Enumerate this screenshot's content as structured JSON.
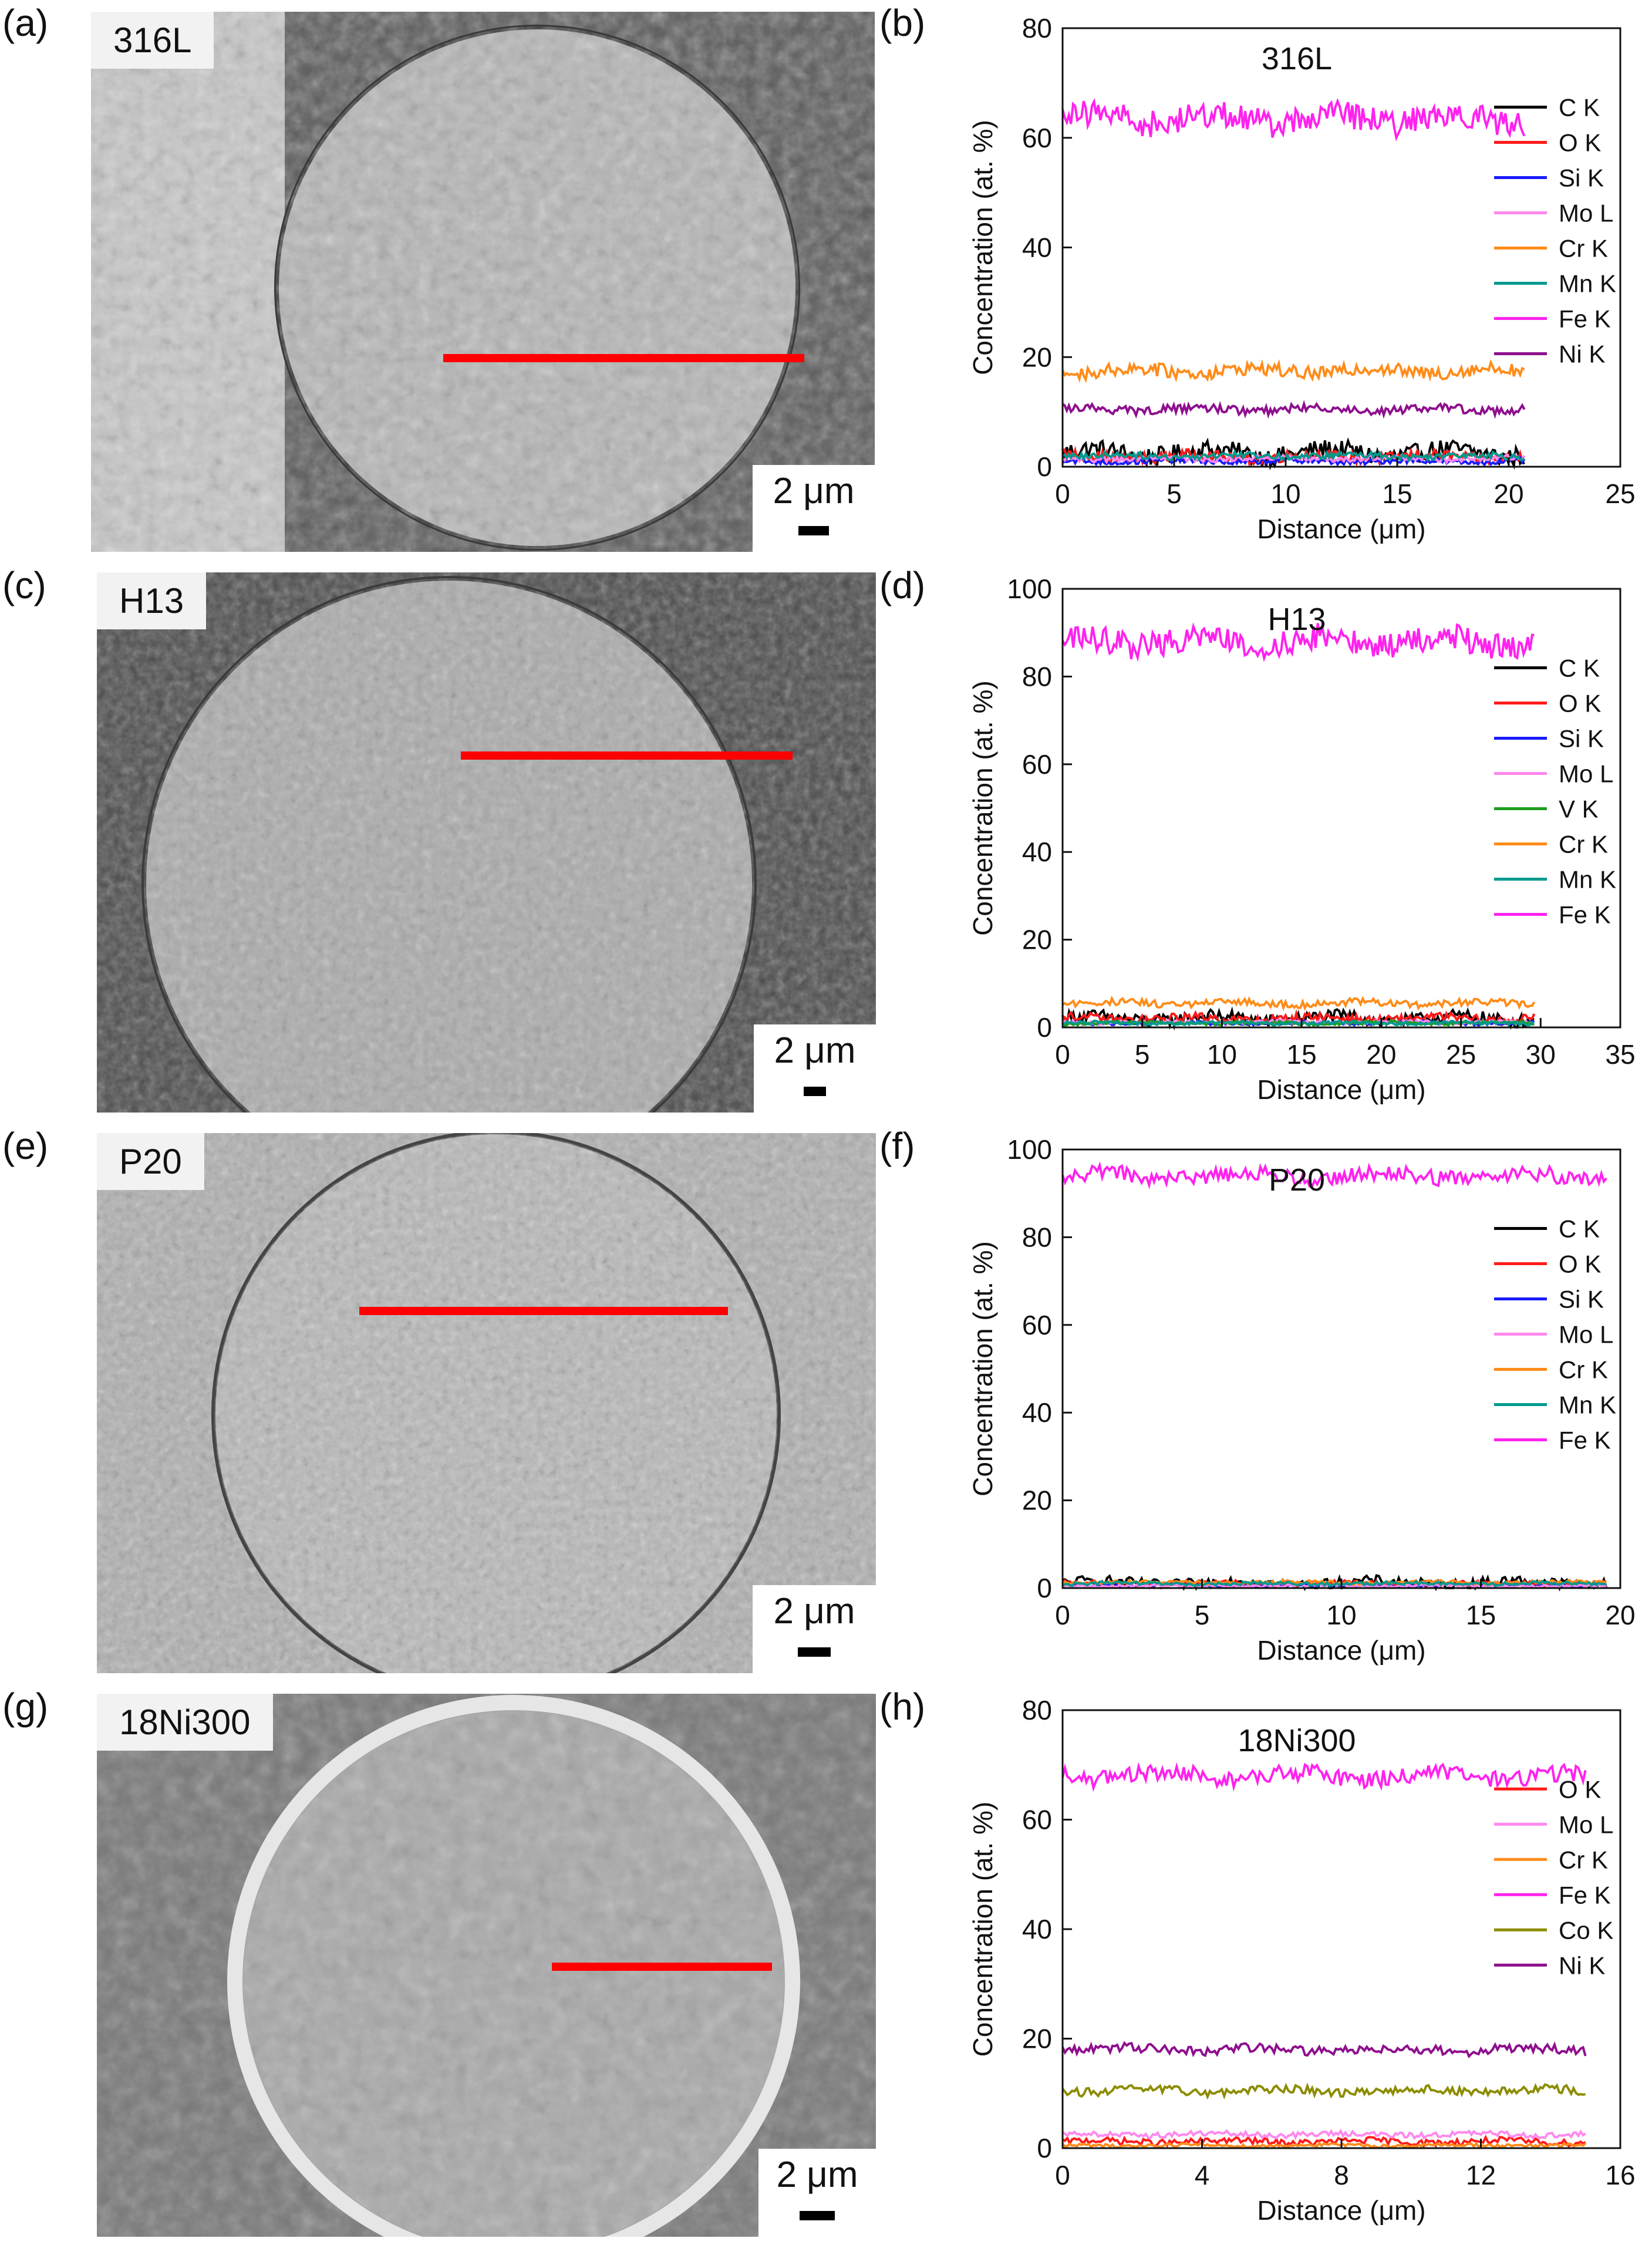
{
  "panels": {
    "a": "(a)",
    "b": "(b)",
    "c": "(c)",
    "d": "(d)",
    "e": "(e)",
    "f": "(f)",
    "g": "(g)",
    "h": "(h)"
  },
  "images": [
    {
      "sample": "316L",
      "scale_bar": "2 μm"
    },
    {
      "sample": "H13",
      "scale_bar": "2 μm"
    },
    {
      "sample": "P20",
      "scale_bar": "2 μm"
    },
    {
      "sample": "18Ni300",
      "scale_bar": "2 μm"
    }
  ],
  "colors": {
    "C K": "#000000",
    "O K": "#ff1a1a",
    "Si K": "#1a1aff",
    "Mo L": "#ff88ee",
    "V K": "#1e9e1e",
    "Cr K": "#ff8c1a",
    "Mn K": "#009a8e",
    "Fe K": "#ff22ee",
    "Co K": "#8c8c00",
    "Ni K": "#8e0f8e",
    "red_line": "#ff0000"
  },
  "chart_data": [
    {
      "type": "line",
      "title": "316L",
      "xlabel": "Distance (μm)",
      "ylabel": "Concentration (at. %)",
      "xlim": [
        0,
        25
      ],
      "ylim": [
        0,
        80
      ],
      "xticks": [
        "0",
        "5",
        "10",
        "15",
        "20",
        "25"
      ],
      "yticks": [
        "0",
        "20",
        "40",
        "60",
        "80"
      ],
      "x_end": 20.7,
      "legend_position": "right",
      "series": [
        {
          "name": "C  K",
          "mean": 2.5,
          "noise": 1.8
        },
        {
          "name": "O  K",
          "mean": 1.8,
          "noise": 1.0
        },
        {
          "name": "Si K",
          "mean": 1.0,
          "noise": 0.5
        },
        {
          "name": "Mo L",
          "mean": 1.5,
          "noise": 0.5
        },
        {
          "name": "Cr K",
          "mean": 17.5,
          "noise": 1.2
        },
        {
          "name": "Mn K",
          "mean": 2.0,
          "noise": 0.6
        },
        {
          "name": "Fe K",
          "mean": 63.5,
          "noise": 2.5
        },
        {
          "name": "Ni K",
          "mean": 10.5,
          "noise": 0.8
        }
      ]
    },
    {
      "type": "line",
      "title": "H13",
      "xlabel": "Distance (μm)",
      "ylabel": "Concentration (at. %)",
      "xlim": [
        0,
        35
      ],
      "ylim": [
        0,
        100
      ],
      "xticks": [
        "0",
        "5",
        "10",
        "15",
        "20",
        "25",
        "30",
        "35"
      ],
      "yticks": [
        "0",
        "20",
        "40",
        "60",
        "80",
        "100"
      ],
      "x_end": 29.6,
      "legend_position": "right",
      "series": [
        {
          "name": "C  K",
          "mean": 2.0,
          "noise": 1.5
        },
        {
          "name": "O  K",
          "mean": 2.0,
          "noise": 1.0
        },
        {
          "name": "Si K",
          "mean": 1.0,
          "noise": 0.4
        },
        {
          "name": "Mo L",
          "mean": 1.2,
          "noise": 0.4
        },
        {
          "name": "V  K",
          "mean": 1.0,
          "noise": 0.4
        },
        {
          "name": "Cr K",
          "mean": 5.5,
          "noise": 0.8
        },
        {
          "name": "Mn K",
          "mean": 1.0,
          "noise": 0.4
        },
        {
          "name": "Fe K",
          "mean": 88.0,
          "noise": 3.0
        }
      ]
    },
    {
      "type": "line",
      "title": "P20",
      "xlabel": "Distance (μm)",
      "ylabel": "Concentration (at. %)",
      "xlim": [
        0,
        20
      ],
      "ylim": [
        0,
        100
      ],
      "xticks": [
        "0",
        "5",
        "10",
        "15",
        "20"
      ],
      "yticks": [
        "0",
        "20",
        "40",
        "60",
        "80",
        "100"
      ],
      "x_end": 19.5,
      "legend_position": "right",
      "series": [
        {
          "name": "C  K",
          "mean": 1.2,
          "noise": 1.2
        },
        {
          "name": "O  K",
          "mean": 1.0,
          "noise": 0.6
        },
        {
          "name": "Si K",
          "mean": 0.6,
          "noise": 0.3
        },
        {
          "name": "Mo L",
          "mean": 0.5,
          "noise": 0.3
        },
        {
          "name": "Cr K",
          "mean": 1.3,
          "noise": 0.4
        },
        {
          "name": "Mn K",
          "mean": 1.0,
          "noise": 0.4
        },
        {
          "name": "Fe K",
          "mean": 94.0,
          "noise": 1.8
        }
      ]
    },
    {
      "type": "line",
      "title": "18Ni300",
      "xlabel": "Distance (μm)",
      "ylabel": "Concentration (at. %)",
      "xlim": [
        0,
        16
      ],
      "ylim": [
        0,
        80
      ],
      "xticks": [
        "0",
        "4",
        "8",
        "12",
        "16"
      ],
      "yticks": [
        "0",
        "20",
        "40",
        "60",
        "80"
      ],
      "x_end": 15.0,
      "legend_position": "right",
      "series": [
        {
          "name": "O  K",
          "mean": 1.2,
          "noise": 0.6
        },
        {
          "name": "Mo L",
          "mean": 2.5,
          "noise": 0.5
        },
        {
          "name": "Cr K",
          "mean": 0.5,
          "noise": 0.3
        },
        {
          "name": "Fe K",
          "mean": 68.0,
          "noise": 1.6
        },
        {
          "name": "Co K",
          "mean": 10.5,
          "noise": 0.8
        },
        {
          "name": "Ni K",
          "mean": 18.0,
          "noise": 0.9
        }
      ]
    }
  ]
}
